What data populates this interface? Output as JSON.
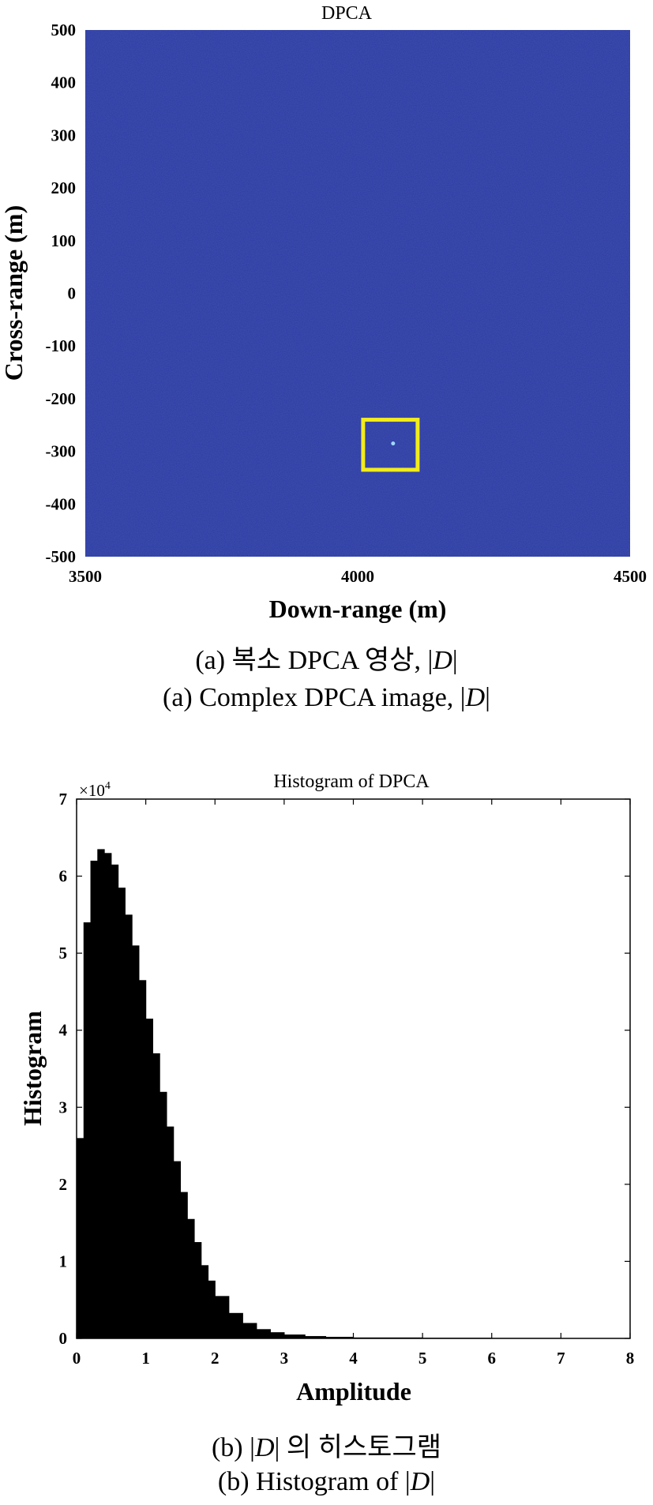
{
  "chart_data": [
    {
      "type": "heatmap",
      "title": "DPCA",
      "xlabel": "Down-range (m)",
      "ylabel": "Cross-range (m)",
      "xlim": [
        3500,
        4500
      ],
      "ylim": [
        -500,
        500
      ],
      "xticks": [
        "3500",
        "4000",
        "4500"
      ],
      "yticks": [
        "500",
        "400",
        "300",
        "200",
        "100",
        "0",
        "-100",
        "-200",
        "-300",
        "-400",
        "-500"
      ],
      "background_color": "#2b3aa0",
      "target_point": {
        "x": 4065,
        "y": -285
      },
      "highlight_box": {
        "x": [
          4010,
          4110
        ],
        "y": [
          -335,
          -240
        ],
        "color": "#f2ec1a"
      }
    },
    {
      "type": "bar",
      "title": "Histogram of DPCA",
      "xlabel": "Amplitude",
      "ylabel": "Histogram",
      "xlim": [
        0,
        8
      ],
      "ylim": [
        0,
        7
      ],
      "y_multiplier": "×10",
      "y_multiplier_exp": "4",
      "xticks": [
        "0",
        "1",
        "2",
        "3",
        "4",
        "5",
        "6",
        "7",
        "8"
      ],
      "yticks": [
        "0",
        "1",
        "2",
        "3",
        "4",
        "5",
        "6",
        "7"
      ],
      "bar_color": "#000000",
      "x": [
        0.0,
        0.1,
        0.2,
        0.3,
        0.4,
        0.5,
        0.6,
        0.7,
        0.8,
        0.9,
        1.0,
        1.1,
        1.2,
        1.3,
        1.4,
        1.5,
        1.6,
        1.7,
        1.8,
        1.9,
        2.0,
        2.2,
        2.4,
        2.6,
        2.8,
        3.0,
        3.3,
        3.6,
        4.0,
        5.0,
        6.0,
        7.0,
        8.0
      ],
      "values": [
        2.6,
        5.4,
        6.2,
        6.35,
        6.3,
        6.15,
        5.85,
        5.5,
        5.1,
        4.65,
        4.15,
        3.7,
        3.2,
        2.75,
        2.3,
        1.9,
        1.55,
        1.25,
        0.95,
        0.75,
        0.55,
        0.33,
        0.2,
        0.12,
        0.08,
        0.05,
        0.03,
        0.02,
        0.012,
        0.008,
        0.006,
        0.005,
        0.005
      ]
    }
  ],
  "captions": {
    "a_korean_prefix": "(a)  복소 DPCA 영상, ",
    "a_english_prefix": "(a)  Complex DPCA image, ",
    "b_korean_prefix": "(b) ",
    "b_korean_suffix": " 의 히스토그램",
    "b_english_prefix": "(b)  Histogram of ",
    "abs_open": "|",
    "abs_var": "D",
    "abs_close": "|"
  }
}
